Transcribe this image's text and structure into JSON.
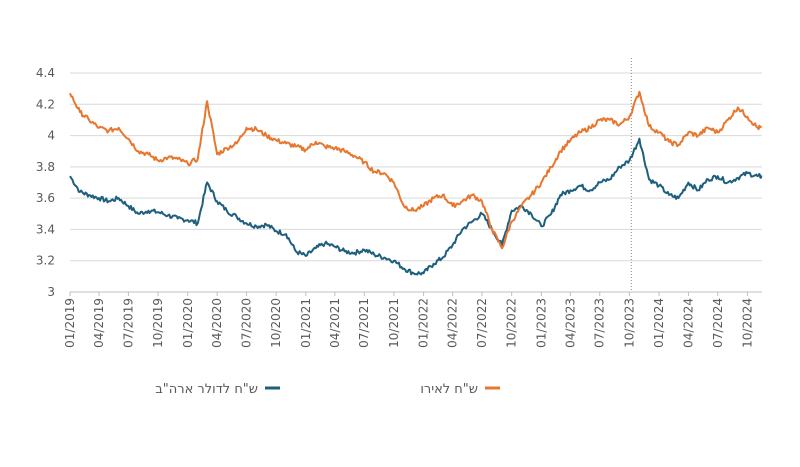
{
  "chart_data": {
    "type": "line",
    "title": "",
    "xlabel": "",
    "ylabel": "",
    "ylim": [
      3,
      4.4
    ],
    "yticks": [
      "3",
      "3.2",
      "3.4",
      "3.6",
      "3.8",
      "4",
      "4.2",
      "4.4"
    ],
    "xticks": [
      "01/2019",
      "04/2019",
      "07/2019",
      "10/2019",
      "01/2020",
      "04/2020",
      "07/2020",
      "10/2020",
      "01/2021",
      "04/2021",
      "07/2021",
      "10/2021",
      "01/2022",
      "04/2022",
      "07/2022",
      "10/2022",
      "01/2023",
      "04/2023",
      "07/2023",
      "10/2023",
      "01/2024",
      "04/2024",
      "07/2024",
      "10/2024"
    ],
    "grid": "horizontal",
    "legend_position": "bottom",
    "reference_line": {
      "x": "2023-10-07",
      "style": "dotted"
    },
    "x": [
      "2019-01",
      "2019-02",
      "2019-03",
      "2019-04",
      "2019-05",
      "2019-06",
      "2019-07",
      "2019-08",
      "2019-09",
      "2019-10",
      "2019-11",
      "2019-12",
      "2020-01",
      "2020-02",
      "2020-03",
      "2020-04",
      "2020-05",
      "2020-06",
      "2020-07",
      "2020-08",
      "2020-09",
      "2020-10",
      "2020-11",
      "2020-12",
      "2021-01",
      "2021-02",
      "2021-03",
      "2021-04",
      "2021-05",
      "2021-06",
      "2021-07",
      "2021-08",
      "2021-09",
      "2021-10",
      "2021-11",
      "2021-12",
      "2022-01",
      "2022-02",
      "2022-03",
      "2022-04",
      "2022-05",
      "2022-06",
      "2022-07",
      "2022-08",
      "2022-09",
      "2022-10",
      "2022-11",
      "2022-12",
      "2023-01",
      "2023-02",
      "2023-03",
      "2023-04",
      "2023-05",
      "2023-06",
      "2023-07",
      "2023-08",
      "2023-09",
      "2023-10",
      "2023-11",
      "2023-12",
      "2024-01",
      "2024-02",
      "2024-03",
      "2024-04",
      "2024-05",
      "2024-06",
      "2024-07",
      "2024-08",
      "2024-09",
      "2024-10",
      "2024-11"
    ],
    "series": [
      {
        "name": "ש\"ח לדולר ארה\"ב",
        "color": "#1f5f7e",
        "values": [
          3.74,
          3.64,
          3.62,
          3.6,
          3.58,
          3.6,
          3.55,
          3.5,
          3.52,
          3.51,
          3.49,
          3.47,
          3.46,
          3.44,
          3.7,
          3.58,
          3.52,
          3.48,
          3.44,
          3.42,
          3.43,
          3.39,
          3.37,
          3.26,
          3.23,
          3.28,
          3.31,
          3.29,
          3.26,
          3.25,
          3.27,
          3.24,
          3.22,
          3.2,
          3.15,
          3.12,
          3.12,
          3.18,
          3.22,
          3.3,
          3.4,
          3.45,
          3.5,
          3.4,
          3.3,
          3.52,
          3.55,
          3.5,
          3.42,
          3.5,
          3.62,
          3.65,
          3.68,
          3.65,
          3.7,
          3.72,
          3.8,
          3.84,
          3.98,
          3.72,
          3.68,
          3.62,
          3.6,
          3.7,
          3.65,
          3.72,
          3.74,
          3.7,
          3.73,
          3.76,
          3.74
        ]
      },
      {
        "name": "ש\"ח לאירו",
        "color": "#e8772e",
        "values": [
          4.27,
          4.15,
          4.1,
          4.05,
          4.03,
          4.05,
          3.98,
          3.9,
          3.88,
          3.84,
          3.86,
          3.85,
          3.82,
          3.85,
          4.22,
          3.88,
          3.92,
          3.95,
          4.05,
          4.04,
          4.0,
          3.97,
          3.95,
          3.93,
          3.91,
          3.96,
          3.93,
          3.92,
          3.9,
          3.87,
          3.83,
          3.77,
          3.76,
          3.7,
          3.55,
          3.52,
          3.55,
          3.6,
          3.62,
          3.55,
          3.58,
          3.62,
          3.58,
          3.4,
          3.28,
          3.45,
          3.55,
          3.62,
          3.7,
          3.8,
          3.9,
          3.97,
          4.02,
          4.05,
          4.1,
          4.1,
          4.07,
          4.12,
          4.28,
          4.06,
          4.02,
          3.96,
          3.94,
          4.02,
          4.0,
          4.05,
          4.02,
          4.1,
          4.18,
          4.12,
          4.05
        ]
      }
    ]
  }
}
